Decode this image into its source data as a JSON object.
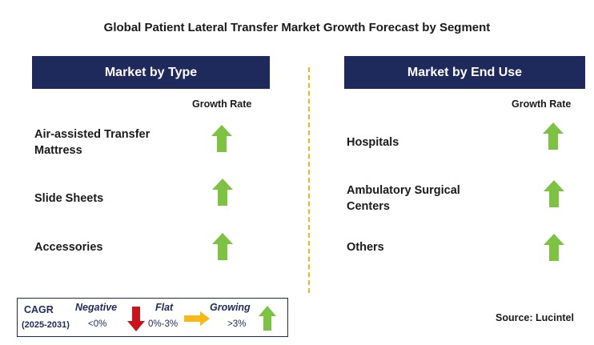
{
  "title": "Global Patient Lateral Transfer Market Growth Forecast by Segment",
  "left_panel": {
    "header": "Market by Type",
    "column_label": "Growth Rate",
    "rows": [
      {
        "label_line1": "Air-assisted Transfer",
        "label_line2": "Mattress",
        "trend": "growing"
      },
      {
        "label_line1": "Slide Sheets",
        "label_line2": "",
        "trend": "growing"
      },
      {
        "label_line1": "Accessories",
        "label_line2": "",
        "trend": "growing"
      }
    ]
  },
  "right_panel": {
    "header": "Market by End Use",
    "column_label": "Growth Rate",
    "rows": [
      {
        "label_line1": "Hospitals",
        "label_line2": "",
        "trend": "growing"
      },
      {
        "label_line1": "Ambulatory Surgical",
        "label_line2": "Centers",
        "trend": "growing"
      },
      {
        "label_line1": "Others",
        "label_line2": "",
        "trend": "growing"
      }
    ]
  },
  "legend": {
    "cagr_label": "CAGR",
    "years": "(2025-2031)",
    "negative_label": "Negative",
    "negative_value": "<0%",
    "flat_label": "Flat",
    "flat_value": "0%-3%",
    "growing_label": "Growing",
    "growing_value": ">3%"
  },
  "source": "Source: Lucintel",
  "colors": {
    "header_bg": "#1f2a5c",
    "growing_arrow": "#7dc243",
    "negative_arrow": "#c9141b",
    "flat_arrow": "#f7b917",
    "divider": "#f2b41d"
  },
  "icons": {
    "growing": "up-arrow-icon",
    "negative": "down-arrow-icon",
    "flat": "right-arrow-icon"
  }
}
